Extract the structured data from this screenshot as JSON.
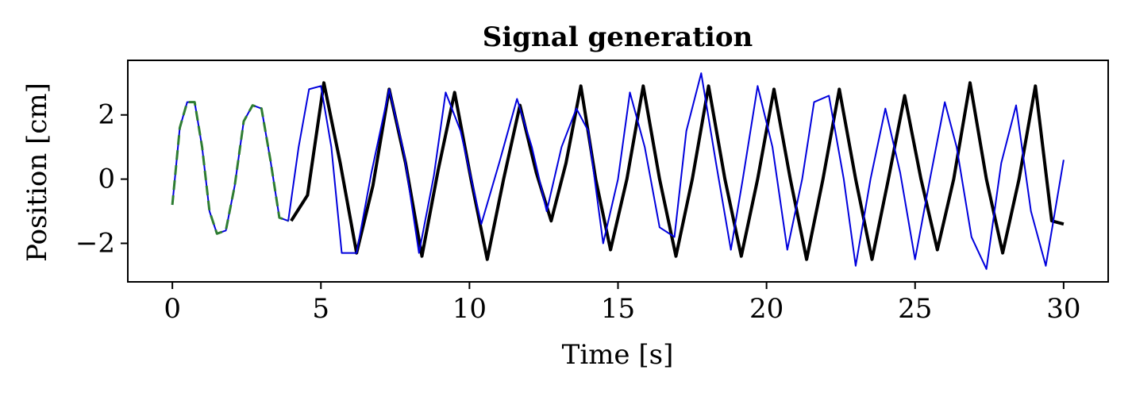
{
  "chart_data": {
    "type": "line",
    "title": "Signal generation",
    "xlabel": "Time [s]",
    "ylabel": "Position [cm]",
    "xlim": [
      -1.5,
      31.5
    ],
    "ylim": [
      -3.2,
      3.7
    ],
    "grid": false,
    "x_ticks": [
      0,
      5,
      10,
      15,
      20,
      25,
      30
    ],
    "x_tick_labels": [
      "0",
      "5",
      "10",
      "15",
      "20",
      "25",
      "30"
    ],
    "y_ticks": [
      -2,
      0,
      2
    ],
    "y_tick_labels": [
      "−2",
      "0",
      "2"
    ],
    "series": [
      {
        "color": "#000000",
        "style": "solid-thick",
        "x": [
          4.0,
          4.55,
          5.1,
          5.65,
          6.2,
          6.75,
          7.3,
          7.85,
          8.4,
          8.95,
          9.5,
          10.05,
          10.6,
          11.15,
          11.7,
          12.25,
          12.75,
          13.25,
          13.75,
          14.25,
          14.75,
          15.3,
          15.85,
          16.4,
          16.95,
          17.5,
          18.05,
          18.6,
          19.15,
          19.7,
          20.25,
          20.8,
          21.35,
          21.9,
          22.45,
          23.0,
          23.55,
          24.1,
          24.65,
          25.2,
          25.75,
          26.3,
          26.85,
          27.4,
          27.95,
          28.5,
          29.05,
          29.6,
          30.0
        ],
        "y": [
          -1.3,
          -0.5,
          3.0,
          0.5,
          -2.3,
          -0.2,
          2.8,
          0.5,
          -2.4,
          0.3,
          2.7,
          0.0,
          -2.5,
          0.0,
          2.3,
          0.2,
          -1.3,
          0.5,
          2.9,
          0.0,
          -2.2,
          0.0,
          2.9,
          0.0,
          -2.4,
          0.0,
          2.9,
          0.0,
          -2.4,
          0.0,
          2.8,
          0.0,
          -2.5,
          0.0,
          2.8,
          0.0,
          -2.5,
          0.0,
          2.6,
          0.0,
          -2.2,
          0.0,
          3.0,
          0.0,
          -2.3,
          0.0,
          2.9,
          -1.3,
          -1.4
        ]
      },
      {
        "color": "#0000dd",
        "style": "solid-thin",
        "x": [
          0.0,
          0.25,
          0.5,
          0.75,
          1.0,
          1.25,
          1.5,
          1.8,
          2.1,
          2.4,
          2.7,
          3.0,
          3.3,
          3.6,
          3.9,
          4.25,
          4.6,
          5.0,
          5.35,
          5.7,
          6.2,
          6.7,
          7.3,
          7.8,
          8.3,
          8.8,
          9.2,
          9.7,
          10.4,
          11.0,
          11.6,
          12.1,
          12.6,
          13.1,
          13.6,
          14.0,
          14.5,
          15.0,
          15.4,
          15.9,
          16.4,
          16.9,
          17.3,
          17.8,
          18.3,
          18.8,
          19.2,
          19.7,
          20.2,
          20.7,
          21.2,
          21.6,
          22.1,
          22.6,
          23.0,
          23.5,
          24.0,
          24.5,
          25.0,
          25.5,
          26.0,
          26.4,
          26.9,
          27.4,
          27.9,
          28.4,
          28.9,
          29.4,
          30.0
        ],
        "y": [
          -0.8,
          1.6,
          2.4,
          2.4,
          1.0,
          -1.0,
          -1.7,
          -1.6,
          -0.2,
          1.8,
          2.3,
          2.2,
          0.6,
          -1.2,
          -1.3,
          1.0,
          2.8,
          2.9,
          1.0,
          -2.3,
          -2.3,
          0.2,
          2.8,
          0.8,
          -2.3,
          0.1,
          2.7,
          1.5,
          -1.4,
          0.5,
          2.5,
          1.0,
          -1.0,
          1.0,
          2.2,
          1.5,
          -2.0,
          0.0,
          2.7,
          1.0,
          -1.5,
          -1.8,
          1.5,
          3.3,
          0.5,
          -2.2,
          0.0,
          2.9,
          1.0,
          -2.2,
          0.0,
          2.4,
          2.6,
          0.0,
          -2.7,
          0.0,
          2.2,
          0.2,
          -2.5,
          0.0,
          2.4,
          1.0,
          -1.8,
          -2.8,
          0.5,
          2.3,
          -1.0,
          -2.7,
          0.6
        ]
      },
      {
        "color": "#2e7d32",
        "style": "dashed",
        "x": [
          0.0,
          0.25,
          0.5,
          0.75,
          1.0,
          1.25,
          1.5,
          1.8,
          2.1,
          2.4,
          2.7,
          3.0,
          3.3,
          3.6,
          3.9
        ],
        "y": [
          -0.8,
          1.6,
          2.4,
          2.4,
          1.0,
          -1.0,
          -1.7,
          -1.6,
          -0.2,
          1.8,
          2.3,
          2.2,
          0.6,
          -1.2,
          -1.3
        ]
      }
    ]
  }
}
